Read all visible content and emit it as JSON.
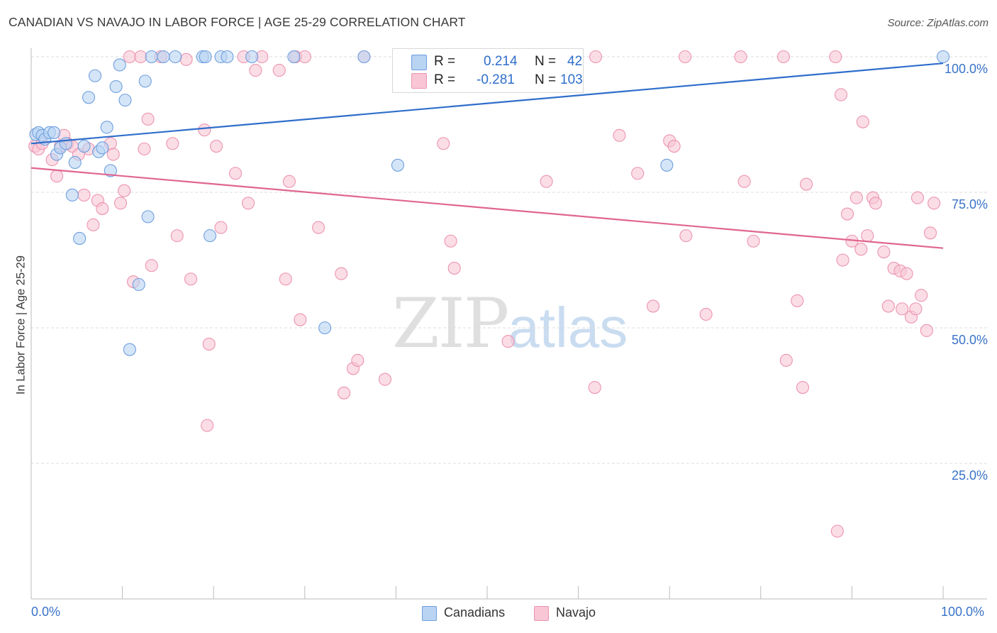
{
  "title": "CANADIAN VS NAVAJO IN LABOR FORCE | AGE 25-29 CORRELATION CHART",
  "source": "Source: ZipAtlas.com",
  "watermark": {
    "zip": "ZIP",
    "atlas": "atlas"
  },
  "colors": {
    "blue_fill": "#b9d3f3",
    "blue_stroke": "#6e9fde",
    "blue_line": "#2f6ecb",
    "pink_fill": "#f8c6d5",
    "pink_stroke": "#ec94b0",
    "pink_line": "#e06690",
    "axis_text": "#3a73c7",
    "grid": "#dddddd"
  },
  "legend": {
    "canadians": {
      "r_label": "R =",
      "r_value": "0.214",
      "n_label": "N =",
      "n_value": "42"
    },
    "navajo": {
      "r_label": "R =",
      "r_value": "-0.281",
      "n_label": "N =",
      "n_value": "103"
    }
  },
  "bottom_legend": {
    "canadians": "Canadians",
    "navajo": "Navajo"
  },
  "chart_data": {
    "type": "scatter",
    "title": "CANADIAN VS NAVAJO IN LABOR FORCE | AGE 25-29 CORRELATION CHART",
    "xlabel": "",
    "ylabel": "In Labor Force | Age 25-29",
    "xlim": [
      0,
      100
    ],
    "ylim": [
      0,
      100
    ],
    "x_tick_labels": [
      "0.0%",
      "100.0%"
    ],
    "y_tick_labels": [
      "25.0%",
      "50.0%",
      "75.0%",
      "100.0%"
    ],
    "y_ticks": [
      25,
      50,
      75,
      100
    ],
    "series": [
      {
        "name": "Canadians",
        "trend": {
          "x": [
            0,
            100
          ],
          "y": [
            84.0,
            98.8
          ]
        },
        "points": [
          [
            0.5,
            85.7
          ],
          [
            0.8,
            86.0
          ],
          [
            1.2,
            85.5
          ],
          [
            1.5,
            84.8
          ],
          [
            2.0,
            86.0
          ],
          [
            2.5,
            86.0
          ],
          [
            2.8,
            82.0
          ],
          [
            3.2,
            83.2
          ],
          [
            3.8,
            84.0
          ],
          [
            4.5,
            74.5
          ],
          [
            4.8,
            80.5
          ],
          [
            5.3,
            66.5
          ],
          [
            5.8,
            83.5
          ],
          [
            6.3,
            92.5
          ],
          [
            7.0,
            96.5
          ],
          [
            7.4,
            82.5
          ],
          [
            7.8,
            83.2
          ],
          [
            8.3,
            87.0
          ],
          [
            8.7,
            79.0
          ],
          [
            9.3,
            94.5
          ],
          [
            9.7,
            98.5
          ],
          [
            10.3,
            92.0
          ],
          [
            10.8,
            46.0
          ],
          [
            11.8,
            58.0
          ],
          [
            12.5,
            95.5
          ],
          [
            12.8,
            70.5
          ],
          [
            13.2,
            100.0
          ],
          [
            14.5,
            100.0
          ],
          [
            15.8,
            100.0
          ],
          [
            18.8,
            100.0
          ],
          [
            19.1,
            100.0
          ],
          [
            19.6,
            67.0
          ],
          [
            20.8,
            100.0
          ],
          [
            21.5,
            100.0
          ],
          [
            24.2,
            100.0
          ],
          [
            28.8,
            100.0
          ],
          [
            32.2,
            50.0
          ],
          [
            36.5,
            100.0
          ],
          [
            40.2,
            80.0
          ],
          [
            55.6,
            100.0
          ],
          [
            69.7,
            80.0
          ],
          [
            100.0,
            100.0
          ]
        ]
      },
      {
        "name": "Navajo",
        "trend": {
          "x": [
            0,
            100
          ],
          "y": [
            79.5,
            64.7
          ]
        },
        "points": [
          [
            0.4,
            83.5
          ],
          [
            0.8,
            83.0
          ],
          [
            1.2,
            84.0
          ],
          [
            2.3,
            81.0
          ],
          [
            2.8,
            78.0
          ],
          [
            3.2,
            83.5
          ],
          [
            3.6,
            85.5
          ],
          [
            4.0,
            84.0
          ],
          [
            4.5,
            83.5
          ],
          [
            5.2,
            82.0
          ],
          [
            5.8,
            74.5
          ],
          [
            6.3,
            83.0
          ],
          [
            6.8,
            69.0
          ],
          [
            7.3,
            73.5
          ],
          [
            7.8,
            72.0
          ],
          [
            8.7,
            84.0
          ],
          [
            9.0,
            82.0
          ],
          [
            9.8,
            73.0
          ],
          [
            10.2,
            75.3
          ],
          [
            10.8,
            100.0
          ],
          [
            11.2,
            58.5
          ],
          [
            12.0,
            100.0
          ],
          [
            12.4,
            83.0
          ],
          [
            12.8,
            88.5
          ],
          [
            13.2,
            61.5
          ],
          [
            14.2,
            100.0
          ],
          [
            15.5,
            84.0
          ],
          [
            16.0,
            67.0
          ],
          [
            17.0,
            99.5
          ],
          [
            17.5,
            59.0
          ],
          [
            19.0,
            86.5
          ],
          [
            19.3,
            32.0
          ],
          [
            19.5,
            47.0
          ],
          [
            20.3,
            83.5
          ],
          [
            20.8,
            68.5
          ],
          [
            22.4,
            78.5
          ],
          [
            23.3,
            100.0
          ],
          [
            23.8,
            73.0
          ],
          [
            24.6,
            97.5
          ],
          [
            25.3,
            100.0
          ],
          [
            27.2,
            97.5
          ],
          [
            27.9,
            59.0
          ],
          [
            28.3,
            77.0
          ],
          [
            29.0,
            100.0
          ],
          [
            29.5,
            51.5
          ],
          [
            30.0,
            100.0
          ],
          [
            31.5,
            68.5
          ],
          [
            34.0,
            60.0
          ],
          [
            34.3,
            38.0
          ],
          [
            35.3,
            42.5
          ],
          [
            35.8,
            44.0
          ],
          [
            36.5,
            100.0
          ],
          [
            38.8,
            40.5
          ],
          [
            42.7,
            100.0
          ],
          [
            45.2,
            84.0
          ],
          [
            46.0,
            66.0
          ],
          [
            46.4,
            61.0
          ],
          [
            52.3,
            47.5
          ],
          [
            56.0,
            100.0
          ],
          [
            56.5,
            77.0
          ],
          [
            61.8,
            39.0
          ],
          [
            61.9,
            100.0
          ],
          [
            64.5,
            85.5
          ],
          [
            66.5,
            78.5
          ],
          [
            68.2,
            54.0
          ],
          [
            70.0,
            84.5
          ],
          [
            70.5,
            83.5
          ],
          [
            71.7,
            100.0
          ],
          [
            71.8,
            67.0
          ],
          [
            74.0,
            52.5
          ],
          [
            77.8,
            100.0
          ],
          [
            78.2,
            77.0
          ],
          [
            79.2,
            66.0
          ],
          [
            82.5,
            100.0
          ],
          [
            82.8,
            44.0
          ],
          [
            84.0,
            55.0
          ],
          [
            84.6,
            39.0
          ],
          [
            85.0,
            76.5
          ],
          [
            88.2,
            100.0
          ],
          [
            88.8,
            93.0
          ],
          [
            88.4,
            12.5
          ],
          [
            89.0,
            62.5
          ],
          [
            89.5,
            71.0
          ],
          [
            90.0,
            66.0
          ],
          [
            90.5,
            74.0
          ],
          [
            91.0,
            64.5
          ],
          [
            91.2,
            88.0
          ],
          [
            91.7,
            67.0
          ],
          [
            92.3,
            74.0
          ],
          [
            92.6,
            73.0
          ],
          [
            93.5,
            64.0
          ],
          [
            94.0,
            54.0
          ],
          [
            94.6,
            61.0
          ],
          [
            95.3,
            60.5
          ],
          [
            95.5,
            53.5
          ],
          [
            96.0,
            60.0
          ],
          [
            96.5,
            52.0
          ],
          [
            97.0,
            53.5
          ],
          [
            97.2,
            74.0
          ],
          [
            97.6,
            56.0
          ],
          [
            98.2,
            49.5
          ],
          [
            98.6,
            67.5
          ],
          [
            99.0,
            73.0
          ]
        ]
      }
    ]
  }
}
